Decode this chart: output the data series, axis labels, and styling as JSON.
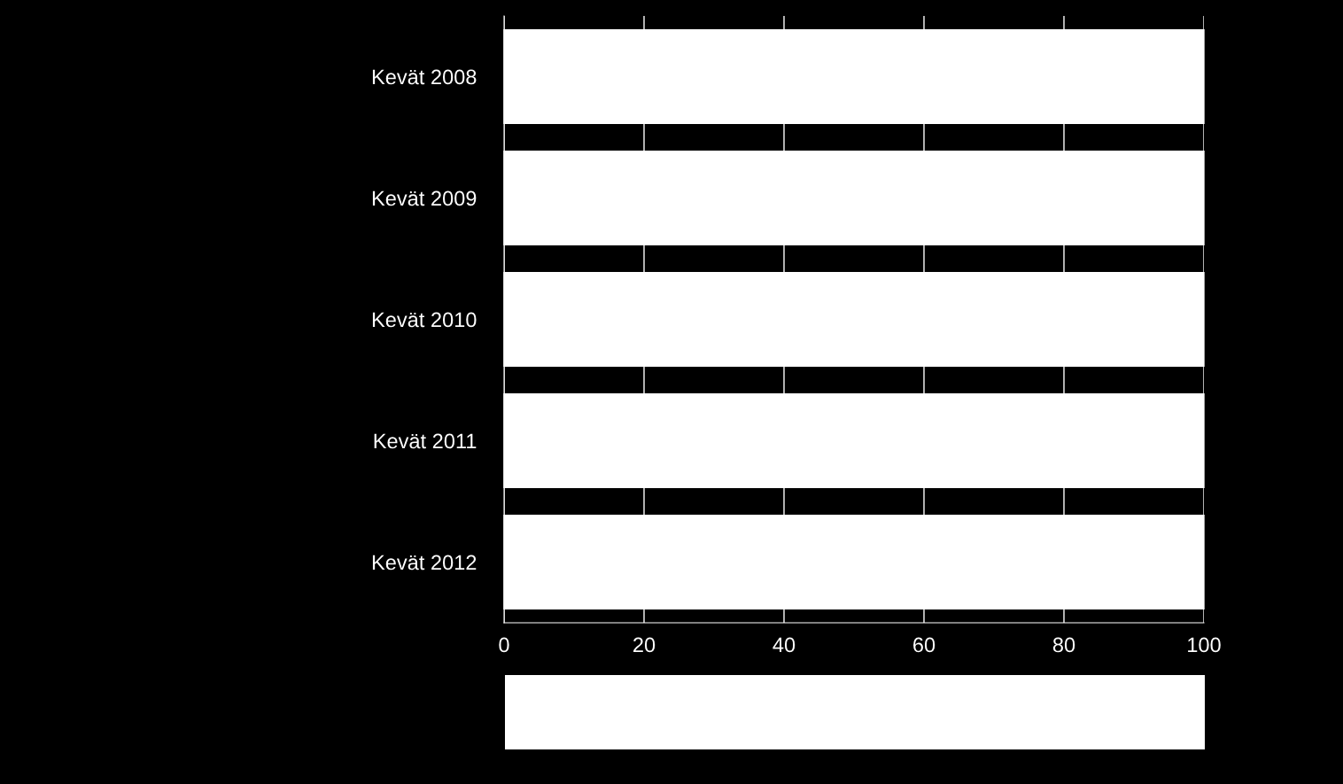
{
  "chart_data": {
    "type": "bar",
    "orientation": "horizontal",
    "categories": [
      "Kevät 2008",
      "Kevät 2009",
      "Kevät 2010",
      "Kevät 2011",
      "Kevät 2012"
    ],
    "series": [
      {
        "color": "#ffffff",
        "values": [
          100,
          100,
          100,
          100,
          100
        ]
      }
    ],
    "xlim": [
      0,
      100
    ],
    "xticks": [
      0,
      20,
      40,
      60,
      80,
      100
    ],
    "grid": "x"
  }
}
